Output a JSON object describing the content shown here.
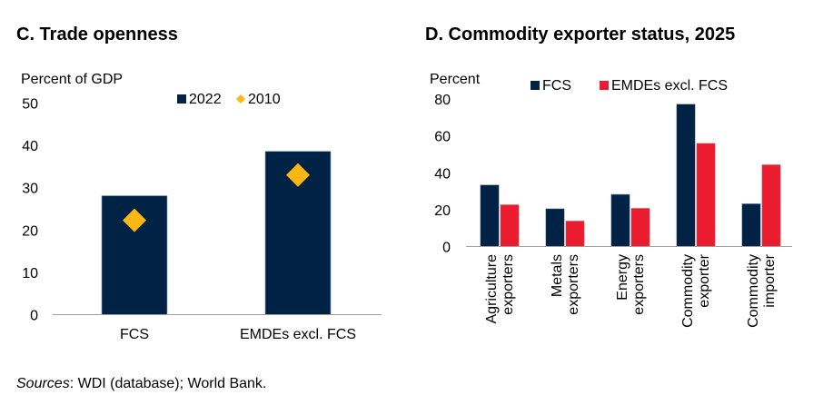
{
  "chart_data": [
    {
      "id": "C",
      "type": "bar",
      "title": "C. Trade openness",
      "ylabel": "Percent of GDP",
      "xlabel": "",
      "ylim": [
        0,
        50
      ],
      "yticks": [
        0,
        10,
        20,
        30,
        40,
        50
      ],
      "categories": [
        "FCS",
        "EMDEs excl. FCS"
      ],
      "series": [
        {
          "name": "2022",
          "kind": "bar",
          "color": "#002345",
          "values": [
            28.1,
            38.6
          ]
        },
        {
          "name": "2010",
          "kind": "marker-diamond",
          "color": "#FDB714",
          "values": [
            22.3,
            33.0
          ]
        }
      ],
      "legend": {
        "position": "top-center",
        "entries": [
          "2022",
          "2010"
        ]
      },
      "grid": false
    },
    {
      "id": "D",
      "type": "bar",
      "title": "D. Commodity exporter status, 2025",
      "ylabel": "Percent",
      "xlabel": "",
      "ylim": [
        0,
        80
      ],
      "yticks": [
        0,
        20,
        40,
        60,
        80
      ],
      "categories": [
        [
          "Agriculture",
          "exporters"
        ],
        [
          "Metals",
          "exporters"
        ],
        [
          "Energy",
          "exporters"
        ],
        [
          "Commodity",
          "exporter"
        ],
        [
          "Commodity",
          "importer"
        ]
      ],
      "series": [
        {
          "name": "FCS",
          "color": "#002345",
          "values": [
            33.4,
            20.5,
            28.3,
            77.2,
            23.2
          ]
        },
        {
          "name": "EMDEs excl. FCS",
          "color": "#EB1C2D",
          "values": [
            22.7,
            13.9,
            20.8,
            56.0,
            44.4
          ]
        }
      ],
      "legend": {
        "position": "top-center",
        "entries": [
          "FCS",
          "EMDEs excl. FCS"
        ]
      },
      "grid": false
    }
  ],
  "footer": {
    "sources_label": "Sources",
    "sources_text": ": WDI (database); World Bank."
  }
}
